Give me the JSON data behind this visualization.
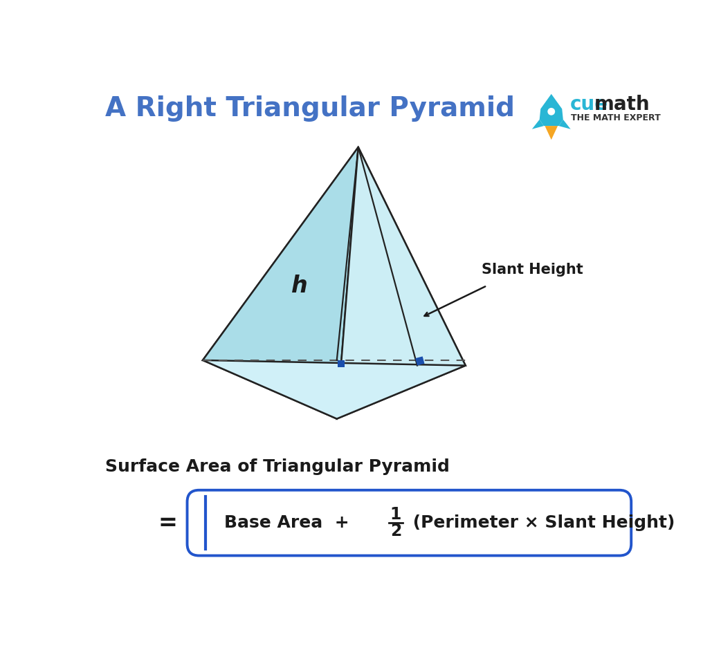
{
  "title": "A Right Triangular Pyramid",
  "title_color": "#4472C4",
  "bg_color": "#ffffff",
  "pyramid_face_left_color": "#aadde8",
  "pyramid_face_right_color": "#cceef5",
  "pyramid_face_back_color": "#bde8f0",
  "pyramid_base_color": "#d0f0f8",
  "pyramid_edge_color": "#222222",
  "dashed_line_color": "#555555",
  "height_line_color": "#222222",
  "slant_label": "Slant Height",
  "h_label": "h",
  "formula_title": "Surface Area of Triangular Pyramid",
  "formula_box_color": "#2255cc",
  "equals_sign": "=",
  "blue_square_color": "#1a4fad",
  "cuemath_blue": "#29b6d5",
  "cuemath_orange": "#f5a623",
  "cuemath_sub": "THE MATH EXPERT"
}
